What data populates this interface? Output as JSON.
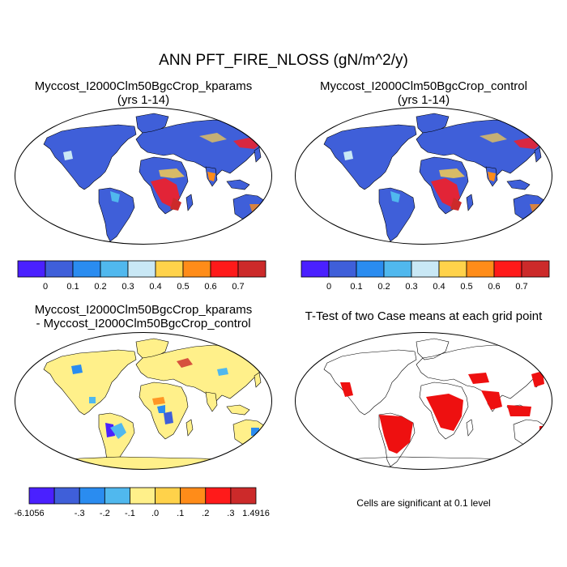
{
  "figure": {
    "title": "ANN PFT_FIRE_NLOSS (gN/m^2/y)"
  },
  "panels": [
    {
      "id": "kparams",
      "title_lines": [
        "Myccost_I2000Clm50BgcCrop_kparams",
        "(yrs 1-14)"
      ],
      "kind": "field"
    },
    {
      "id": "control",
      "title_lines": [
        "Myccost_I2000Clm50BgcCrop_control",
        "(yrs 1-14)"
      ],
      "kind": "field"
    },
    {
      "id": "difference",
      "title_lines": [
        "Myccost_I2000Clm50BgcCrop_kparams",
        "- Myccost_I2000Clm50BgcCrop_control"
      ],
      "kind": "difference"
    },
    {
      "id": "ttest",
      "title_lines": [
        "T-Test of two Case means at each grid point"
      ],
      "kind": "significance",
      "note": "Cells are significant at 0.1 level"
    }
  ],
  "colorbars": {
    "field": {
      "colors": [
        "#4a20ff",
        "#3f5fd9",
        "#2a8cf0",
        "#50b8ee",
        "#c9e8f5",
        "#ffd24a",
        "#ff8c19",
        "#ff1a1a",
        "#cc2a2a"
      ],
      "labels": [
        "0",
        "0.1",
        "0.2",
        "0.3",
        "0.4",
        "0.5",
        "0.6",
        "0.7"
      ]
    },
    "difference": {
      "colors": [
        "#4a20ff",
        "#3f5fd9",
        "#2a8cf0",
        "#50b8ee",
        "#fff08a",
        "#ffd24a",
        "#ff8c19",
        "#ff1a1a",
        "#cc2a2a"
      ],
      "end_labels": [
        "-6.1056",
        "1.4916"
      ],
      "labels": [
        "-.3",
        "-.2",
        "-.1",
        ".0",
        ".1",
        ".2",
        ".3"
      ]
    }
  },
  "map_colors": {
    "ocean": "#ffffff",
    "field_land": "#3f5fd9",
    "diff_land": "#fff08a",
    "significant": "#ee1010",
    "coast": "#000000"
  }
}
